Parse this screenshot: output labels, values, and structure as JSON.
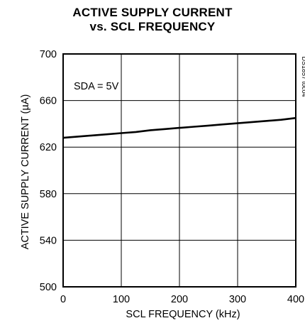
{
  "chart_data": {
    "type": "line",
    "title": [
      "ACTIVE SUPPLY CURRENT",
      "vs. SCL FREQUENCY"
    ],
    "xlabel": "SCL FREQUENCY (kHz)",
    "ylabel": "ACTIVE SUPPLY CURRENT (µA)",
    "xlim": [
      0,
      400
    ],
    "ylim": [
      500,
      700
    ],
    "xticks": [
      0,
      100,
      200,
      300,
      400
    ],
    "yticks": [
      500,
      540,
      580,
      620,
      660,
      700
    ],
    "grid": true,
    "annotation": "SDA = 5V",
    "figure_id": "DS1857 toc04",
    "series": [
      {
        "x": [
          0,
          25,
          50,
          75,
          100,
          125,
          150,
          175,
          200,
          225,
          250,
          275,
          300,
          325,
          350,
          375,
          400
        ],
        "y": [
          628,
          629,
          630,
          631,
          632,
          633,
          634.5,
          635.5,
          636.5,
          637.5,
          638.5,
          639.5,
          640.5,
          641.5,
          642.5,
          643.5,
          645
        ]
      }
    ]
  }
}
